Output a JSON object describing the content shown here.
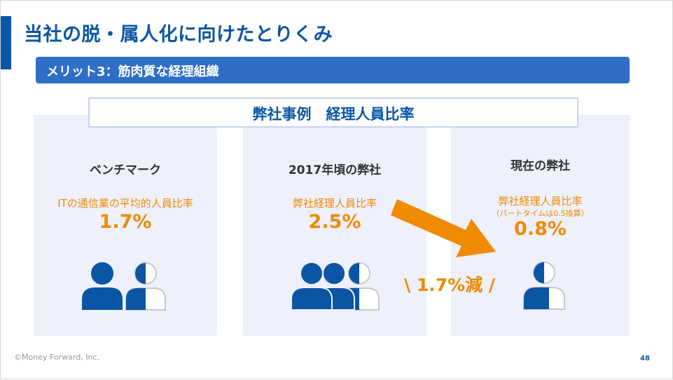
{
  "title": "当社の脱・属人化に向けたとりくみ",
  "subtitle": "メリット3：筋肉質な経理組織",
  "case_title": "弊社事例　経理人員比率",
  "panels": [
    {
      "heading": "ベンチマーク",
      "label": "ITの通信業の平均的人員比率",
      "value": "1.7%",
      "people_icon": "one-and-half-persons-icon"
    },
    {
      "heading": "2017年頃の弊社",
      "label": "弊社経理人員比率",
      "value": "2.5%",
      "people_icon": "two-and-half-persons-icon"
    },
    {
      "heading": "現在の弊社",
      "label": "弊社経理人員比率",
      "note": "（パートタイムは0.5換算）",
      "value": "0.8%",
      "people_icon": "half-plus-person-icon"
    }
  ],
  "reduction_text": "\\ 1.7%減 /",
  "footer": "©Money Forward, Inc.",
  "page_number": "48",
  "colors": {
    "primary": "#0a56a5",
    "accent": "#f08a00",
    "panel": "#eef0fb",
    "subbar": "#2e6ec6"
  }
}
